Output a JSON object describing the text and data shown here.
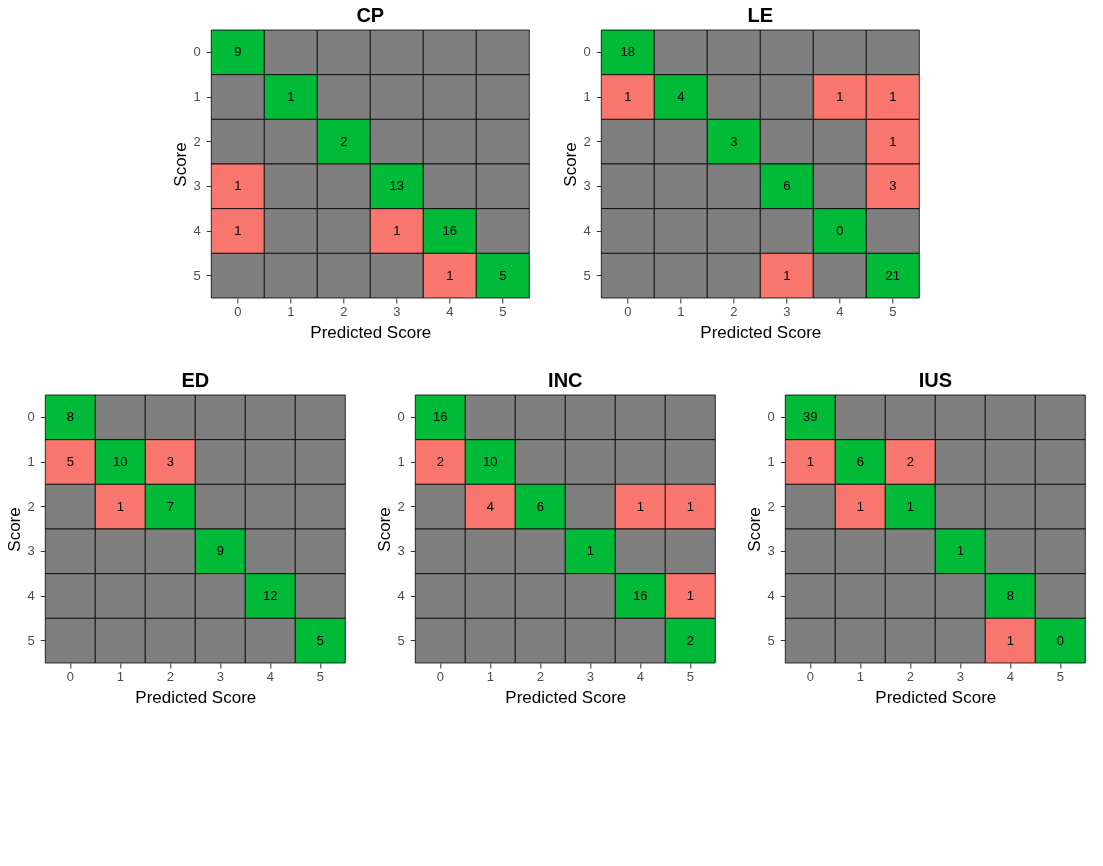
{
  "chart_data": [
    {
      "type": "heatmap",
      "title": "CP",
      "xlabel": "Predicted Score",
      "ylabel": "Score",
      "categories": [
        "0",
        "1",
        "2",
        "3",
        "4",
        "5"
      ],
      "y_categories": [
        "0",
        "1",
        "2",
        "3",
        "4",
        "5"
      ],
      "colors": [
        "#00ba38",
        "#f8766d",
        "#7f7f7f"
      ],
      "data_labels": true,
      "cells": [
        [
          9,
          null,
          null,
          null,
          null,
          null
        ],
        [
          null,
          1,
          null,
          null,
          null,
          null
        ],
        [
          null,
          null,
          2,
          null,
          null,
          null
        ],
        [
          1,
          null,
          null,
          13,
          null,
          null
        ],
        [
          1,
          null,
          null,
          1,
          16,
          null
        ],
        [
          null,
          null,
          null,
          null,
          1,
          5
        ]
      ]
    },
    {
      "type": "heatmap",
      "title": "LE",
      "xlabel": "Predicted Score",
      "ylabel": "Score",
      "categories": [
        "0",
        "1",
        "2",
        "3",
        "4",
        "5"
      ],
      "y_categories": [
        "0",
        "1",
        "2",
        "3",
        "4",
        "5"
      ],
      "colors": [
        "#00ba38",
        "#f8766d",
        "#7f7f7f"
      ],
      "data_labels": true,
      "cells": [
        [
          18,
          null,
          null,
          null,
          null,
          null
        ],
        [
          1,
          4,
          null,
          null,
          1,
          1
        ],
        [
          null,
          null,
          3,
          null,
          null,
          1
        ],
        [
          null,
          null,
          null,
          6,
          null,
          3
        ],
        [
          null,
          null,
          null,
          null,
          0,
          null
        ],
        [
          null,
          null,
          null,
          1,
          null,
          21
        ]
      ]
    },
    {
      "type": "heatmap",
      "title": "ED",
      "xlabel": "Predicted Score",
      "ylabel": "Score",
      "categories": [
        "0",
        "1",
        "2",
        "3",
        "4",
        "5"
      ],
      "y_categories": [
        "0",
        "1",
        "2",
        "3",
        "4",
        "5"
      ],
      "colors": [
        "#00ba38",
        "#f8766d",
        "#7f7f7f"
      ],
      "data_labels": true,
      "cells": [
        [
          8,
          null,
          null,
          null,
          null,
          null
        ],
        [
          5,
          10,
          3,
          null,
          null,
          null
        ],
        [
          null,
          1,
          7,
          null,
          null,
          null
        ],
        [
          null,
          null,
          null,
          9,
          null,
          null
        ],
        [
          null,
          null,
          null,
          null,
          12,
          null
        ],
        [
          null,
          null,
          null,
          null,
          null,
          5
        ]
      ]
    },
    {
      "type": "heatmap",
      "title": "INC",
      "xlabel": "Predicted Score",
      "ylabel": "Score",
      "categories": [
        "0",
        "1",
        "2",
        "3",
        "4",
        "5"
      ],
      "y_categories": [
        "0",
        "1",
        "2",
        "3",
        "4",
        "5"
      ],
      "colors": [
        "#00ba38",
        "#f8766d",
        "#7f7f7f"
      ],
      "data_labels": true,
      "cells": [
        [
          16,
          null,
          null,
          null,
          null,
          null
        ],
        [
          2,
          10,
          null,
          null,
          null,
          null
        ],
        [
          null,
          4,
          6,
          null,
          1,
          1
        ],
        [
          null,
          null,
          null,
          1,
          null,
          null
        ],
        [
          null,
          null,
          null,
          null,
          16,
          1
        ],
        [
          null,
          null,
          null,
          null,
          null,
          2
        ]
      ]
    },
    {
      "type": "heatmap",
      "title": "IUS",
      "xlabel": "Predicted Score",
      "ylabel": "Score",
      "categories": [
        "0",
        "1",
        "2",
        "3",
        "4",
        "5"
      ],
      "y_categories": [
        "0",
        "1",
        "2",
        "3",
        "4",
        "5"
      ],
      "colors": [
        "#00ba38",
        "#f8766d",
        "#7f7f7f"
      ],
      "data_labels": true,
      "cells": [
        [
          39,
          null,
          null,
          null,
          null,
          null
        ],
        [
          1,
          6,
          2,
          null,
          null,
          null
        ],
        [
          null,
          1,
          1,
          null,
          null,
          null
        ],
        [
          null,
          null,
          null,
          1,
          null,
          null
        ],
        [
          null,
          null,
          null,
          null,
          8,
          null
        ],
        [
          null,
          null,
          null,
          null,
          1,
          0
        ]
      ]
    }
  ]
}
